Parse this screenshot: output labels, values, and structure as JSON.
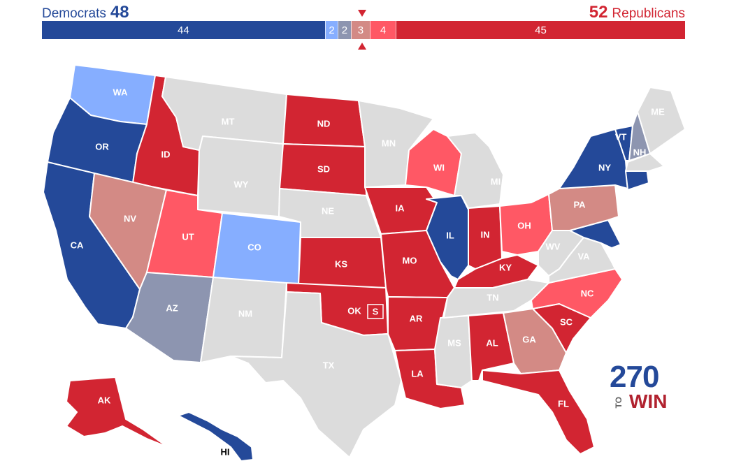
{
  "header": {
    "dem_label": "Democrats",
    "dem_total": "48",
    "rep_total": "52",
    "rep_label": "Republicans"
  },
  "seat_bar": [
    {
      "label": "44",
      "value": 44,
      "color": "#244999"
    },
    {
      "label": "2",
      "value": 2,
      "color": "#86aeff"
    },
    {
      "label": "2",
      "value": 2,
      "color": "#8d95b0"
    },
    {
      "label": "3",
      "value": 3,
      "color": "#d38a85"
    },
    {
      "label": "4",
      "value": 4,
      "color": "#ff5865"
    },
    {
      "label": "45",
      "value": 45,
      "color": "#d22532"
    }
  ],
  "colors": {
    "safe_d": "#244999",
    "likely_d": "#86aeff",
    "tossup_d": "#8d95b0",
    "tossup_r": "#d38a85",
    "likely_r": "#ff5865",
    "safe_r": "#d22532",
    "no_race": "#dcdcdc"
  },
  "states": [
    {
      "code": "WA",
      "rating": "likely_d"
    },
    {
      "code": "OR",
      "rating": "safe_d"
    },
    {
      "code": "CA",
      "rating": "safe_d"
    },
    {
      "code": "ID",
      "rating": "safe_r"
    },
    {
      "code": "NV",
      "rating": "tossup_r"
    },
    {
      "code": "UT",
      "rating": "likely_r"
    },
    {
      "code": "AZ",
      "rating": "tossup_d"
    },
    {
      "code": "MT",
      "rating": "no_race"
    },
    {
      "code": "WY",
      "rating": "no_race"
    },
    {
      "code": "CO",
      "rating": "likely_d"
    },
    {
      "code": "NM",
      "rating": "no_race"
    },
    {
      "code": "ND",
      "rating": "safe_r"
    },
    {
      "code": "SD",
      "rating": "safe_r"
    },
    {
      "code": "NE",
      "rating": "no_race"
    },
    {
      "code": "KS",
      "rating": "safe_r"
    },
    {
      "code": "OK",
      "rating": "safe_r"
    },
    {
      "code": "TX",
      "rating": "no_race"
    },
    {
      "code": "MN",
      "rating": "no_race"
    },
    {
      "code": "IA",
      "rating": "safe_r"
    },
    {
      "code": "MO",
      "rating": "safe_r"
    },
    {
      "code": "AR",
      "rating": "safe_r"
    },
    {
      "code": "LA",
      "rating": "safe_r"
    },
    {
      "code": "WI",
      "rating": "likely_r"
    },
    {
      "code": "IL",
      "rating": "safe_d"
    },
    {
      "code": "MS",
      "rating": "no_race"
    },
    {
      "code": "MI",
      "rating": "no_race"
    },
    {
      "code": "IN",
      "rating": "safe_r"
    },
    {
      "code": "KY",
      "rating": "safe_r"
    },
    {
      "code": "TN",
      "rating": "no_race"
    },
    {
      "code": "AL",
      "rating": "safe_r"
    },
    {
      "code": "OH",
      "rating": "likely_r"
    },
    {
      "code": "GA",
      "rating": "tossup_r"
    },
    {
      "code": "FL",
      "rating": "safe_r"
    },
    {
      "code": "SC",
      "rating": "safe_r"
    },
    {
      "code": "NC",
      "rating": "likely_r"
    },
    {
      "code": "WV",
      "rating": "no_race"
    },
    {
      "code": "VA",
      "rating": "no_race"
    },
    {
      "code": "MD",
      "rating": "safe_d"
    },
    {
      "code": "PA",
      "rating": "tossup_r"
    },
    {
      "code": "NY",
      "rating": "safe_d"
    },
    {
      "code": "VT",
      "rating": "safe_d"
    },
    {
      "code": "NH",
      "rating": "tossup_d"
    },
    {
      "code": "ME",
      "rating": "no_race"
    },
    {
      "code": "CT",
      "rating": "safe_d"
    },
    {
      "code": "AK",
      "rating": "safe_r"
    },
    {
      "code": "HI",
      "rating": "safe_d"
    }
  ],
  "special_marker": "S",
  "logo": {
    "number": "270",
    "to": "TO",
    "win": "WIN"
  }
}
